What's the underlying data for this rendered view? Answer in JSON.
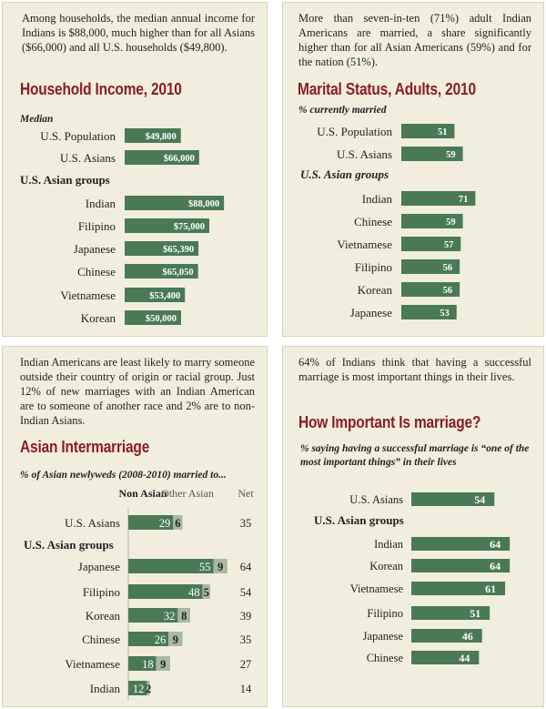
{
  "colors": {
    "bar": "#4a7a55",
    "bar_light": "#a8b9a0",
    "title": "#8a1b2b",
    "panel": "#f2eedd"
  },
  "chart_data": [
    {
      "type": "bar",
      "intro": "Among households, the median annual income for Indians is $88,000, much higher than for all Asians ($66,000) and all U.S. households ($49,800).",
      "title": "Household Income, 2010",
      "subtitle": "Median",
      "group_label": "U.S. Asian groups",
      "categories": [
        "U.S. Population",
        "U.S. Asians",
        "Indian",
        "Filipino",
        "Japanese",
        "Chinese",
        "Vietnamese",
        "Korean"
      ],
      "values": [
        49800,
        66000,
        88000,
        75000,
        65390,
        65050,
        53400,
        50000
      ],
      "value_labels": [
        "$49,800",
        "$66,000",
        "$88,000",
        "$75,000",
        "$65,390",
        "$65,050",
        "$53,400",
        "$50,000"
      ]
    },
    {
      "type": "bar",
      "intro": "More than seven-in-ten (71%) adult Indian Americans are married, a share significantly higher than for all Asian Americans (59%) and for the nation (51%).",
      "title": "Marital Status, Adults, 2010",
      "subtitle": "% currently married",
      "group_label": "U.S. Asian groups",
      "categories": [
        "U.S. Population",
        "U.S. Asians",
        "Indian",
        "Chinese",
        "Vietnamese",
        "Filipino",
        "Korean",
        "Japanese"
      ],
      "values": [
        51,
        59,
        71,
        59,
        57,
        56,
        56,
        53
      ]
    },
    {
      "type": "bar",
      "stacked": true,
      "intro": "Indian Americans are least likely to marry someone outside their country of origin or racial group. Just 12% of new marriages with an Indian American are to someone of another race and 2% are to non-Indian Asians.",
      "title": "Asian Intermarriage",
      "subtitle": "% of Asian newlyweds (2008-2010) married to...",
      "group_label": "U.S. Asian groups",
      "column_headers": [
        "Non Asian",
        "Other Asian",
        "Net"
      ],
      "categories": [
        "U.S. Asians",
        "Japanese",
        "Filipino",
        "Korean",
        "Chinese",
        "Vietnamese",
        "Indian"
      ],
      "series": [
        {
          "name": "Non Asian",
          "values": [
            29,
            55,
            48,
            32,
            26,
            18,
            12
          ]
        },
        {
          "name": "Other Asian",
          "values": [
            6,
            9,
            5,
            8,
            9,
            9,
            2
          ]
        }
      ],
      "net": [
        35,
        64,
        54,
        39,
        35,
        27,
        14
      ]
    },
    {
      "type": "bar",
      "intro": "64% of Indians think that having a successful marriage is most important things in their lives.",
      "title": "How Important Is marriage?",
      "subtitle": "% saying having a successful marriage is “one of the most important things” in their lives",
      "group_label": "U.S. Asian groups",
      "categories": [
        "U.S. Asians",
        "Indian",
        "Korean",
        "Vietnamese",
        "Filipino",
        "Japanese",
        "Chinese"
      ],
      "values": [
        54,
        64,
        64,
        61,
        51,
        46,
        44
      ]
    }
  ]
}
